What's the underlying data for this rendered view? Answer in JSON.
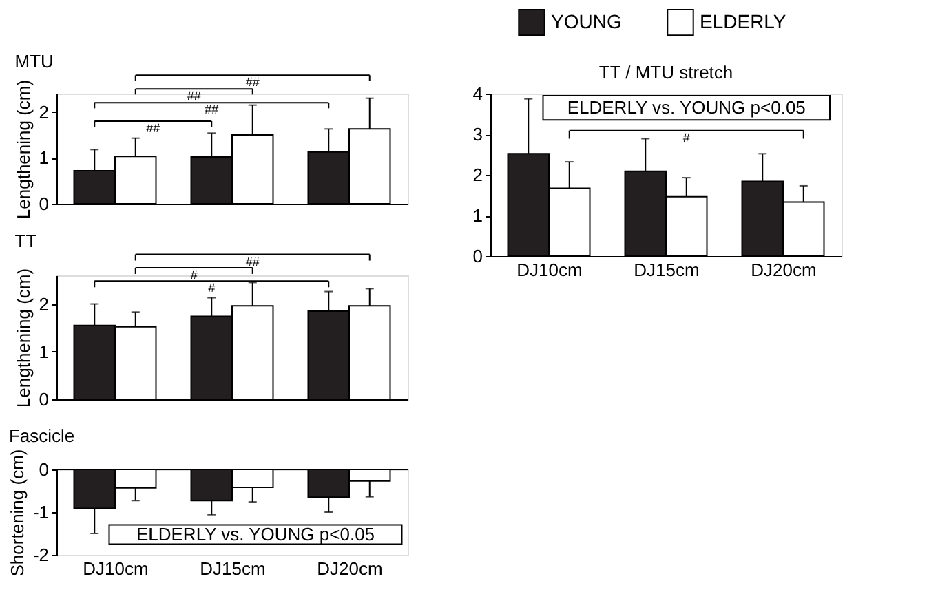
{
  "chart_data": [
    {
      "type": "bar",
      "title": "MTU",
      "ylabel": "Lengthening (cm)",
      "categories": [
        null,
        null,
        null
      ],
      "ylim": [
        0,
        2.4
      ],
      "yticks": [
        0,
        1,
        2
      ],
      "grid": false,
      "series": [
        {
          "color": "#231f20",
          "values": [
            0.72,
            1.02,
            1.13
          ],
          "errors": [
            [
              0.72,
              1.18
            ],
            [
              1.02,
              1.54
            ],
            [
              1.13,
              1.63
            ]
          ]
        },
        {
          "color": "#ffffff",
          "values": [
            1.03,
            1.5,
            1.63
          ],
          "errors": [
            [
              1.03,
              1.43
            ],
            [
              1.5,
              2.15
            ],
            [
              1.63,
              2.3
            ]
          ]
        }
      ],
      "annotations": [
        "##",
        "##",
        "##",
        "##"
      ]
    },
    {
      "type": "bar",
      "title": "TT",
      "ylabel": "Lengthening (cm)",
      "categories": [
        null,
        null,
        null
      ],
      "ylim": [
        0,
        2.6
      ],
      "yticks": [
        0,
        1,
        2
      ],
      "grid": false,
      "series": [
        {
          "color": "#231f20",
          "values": [
            1.55,
            1.74,
            1.85
          ],
          "errors": [
            [
              1.55,
              2.0
            ],
            [
              1.74,
              2.13
            ],
            [
              1.85,
              2.26
            ]
          ]
        },
        {
          "color": "#ffffff",
          "values": [
            1.52,
            1.96,
            1.96
          ],
          "errors": [
            [
              1.52,
              1.83
            ],
            [
              1.96,
              2.45
            ],
            [
              1.96,
              2.32
            ]
          ]
        }
      ],
      "annotations": [
        "#",
        "#",
        "##"
      ]
    },
    {
      "type": "bar",
      "title": "Fascicle",
      "ylabel": "Shortening (cm)",
      "categories": [
        "DJ10cm",
        "DJ15cm",
        "DJ20cm"
      ],
      "ylim": [
        -2,
        0
      ],
      "yticks": [
        -2,
        -1,
        0
      ],
      "grid": false,
      "series": [
        {
          "color": "#231f20",
          "values": [
            -0.91,
            -0.73,
            -0.65
          ],
          "errors": [
            [
              -1.5,
              -0.91
            ],
            [
              -1.06,
              -0.73
            ],
            [
              -1.0,
              -0.65
            ]
          ]
        },
        {
          "color": "#ffffff",
          "values": [
            -0.43,
            -0.42,
            -0.27
          ],
          "errors": [
            [
              -0.73,
              -0.43
            ],
            [
              -0.76,
              -0.42
            ],
            [
              -0.64,
              -0.27
            ]
          ]
        }
      ],
      "annotations": [
        "ELDERLY vs. YOUNG p<0.05"
      ]
    },
    {
      "type": "bar",
      "title": "TT / MTU stretch",
      "categories": [
        "DJ10cm",
        "DJ15cm",
        "DJ20cm"
      ],
      "ylim": [
        0,
        4
      ],
      "yticks": [
        0,
        1,
        2,
        3,
        4
      ],
      "grid": false,
      "legend": "top",
      "series": [
        {
          "name": "YOUNG",
          "color": "#231f20",
          "values": [
            2.52,
            2.09,
            1.84
          ],
          "errors": [
            [
              2.52,
              3.87
            ],
            [
              2.09,
              2.89
            ],
            [
              1.84,
              2.52
            ]
          ]
        },
        {
          "name": "ELDERLY",
          "color": "#ffffff",
          "values": [
            1.67,
            1.46,
            1.33
          ],
          "errors": [
            [
              1.67,
              2.32
            ],
            [
              1.46,
              1.93
            ],
            [
              1.33,
              1.73
            ]
          ]
        }
      ],
      "annotations": [
        "ELDERLY vs. YOUNG p<0.05",
        "#"
      ]
    }
  ]
}
